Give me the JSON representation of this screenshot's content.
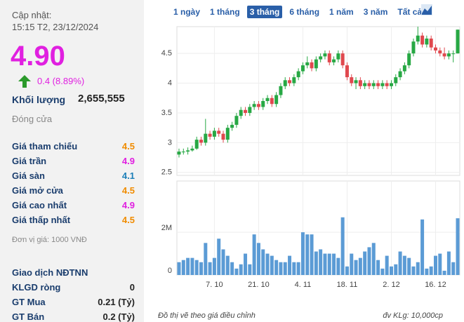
{
  "info": {
    "updated_label": "Cập nhật:",
    "updated_time": "15:15 T2, 23/12/2024",
    "price": "4.90",
    "change": "0.4 (8.89%)",
    "volume_label": "Khối lượng",
    "volume": "2,655,555",
    "status": "Đóng cửa",
    "rows": [
      [
        "Giá tham chiếu",
        "4.5"
      ],
      [
        "Giá trần",
        "4.9"
      ],
      [
        "Giá sàn",
        "4.1"
      ],
      [
        "Giá mở cửa",
        "4.5"
      ],
      [
        "Giá cao nhất",
        "4.9"
      ],
      [
        "Giá thấp nhất",
        "4.5"
      ]
    ],
    "unit": "Đơn vị giá: 1000 VNĐ",
    "foreign_title": "Giao dịch NĐTNN",
    "foreign_rows": [
      [
        "KLGD ròng",
        "0"
      ],
      [
        "GT Mua",
        "0.21 (Tỷ)"
      ],
      [
        "GT Bán",
        "0.2 (Tỷ)"
      ]
    ]
  },
  "range_buttons": [
    "1 ngày",
    "1 tháng",
    "3 tháng",
    "6 tháng",
    "1 năm",
    "3 năm",
    "Tất cả"
  ],
  "chart_data": {
    "type": "candlestick",
    "categories": [
      null,
      null,
      null,
      null,
      null,
      null,
      null,
      null,
      "7. 10",
      null,
      null,
      null,
      null,
      null,
      null,
      null,
      null,
      null,
      "21. 10",
      null,
      null,
      null,
      null,
      null,
      null,
      null,
      null,
      null,
      "4. 11",
      null,
      null,
      null,
      null,
      null,
      null,
      null,
      null,
      null,
      "18. 11",
      null,
      null,
      null,
      null,
      null,
      null,
      null,
      null,
      null,
      "2. 12",
      null,
      null,
      null,
      null,
      null,
      null,
      null,
      null,
      null,
      "16. 12",
      null,
      null,
      null,
      null,
      null
    ],
    "open": [
      2.8,
      2.85,
      2.85,
      2.87,
      2.9,
      3.05,
      3.0,
      3.15,
      3.1,
      3.2,
      3.15,
      3.05,
      3.25,
      3.3,
      3.45,
      3.55,
      3.5,
      3.6,
      3.65,
      3.6,
      3.7,
      3.75,
      3.65,
      3.8,
      3.95,
      4.05,
      4.0,
      4.1,
      4.2,
      4.3,
      4.35,
      4.25,
      4.4,
      4.45,
      4.5,
      4.35,
      4.4,
      4.5,
      4.3,
      4.1,
      4.0,
      4.05,
      3.95,
      4.0,
      3.95,
      4.0,
      3.95,
      4.0,
      3.95,
      4.0,
      4.1,
      4.2,
      4.3,
      4.5,
      4.7,
      4.8,
      4.65,
      4.75,
      4.6,
      4.55,
      4.5,
      4.45,
      4.5,
      4.5
    ],
    "high": [
      2.9,
      2.9,
      2.92,
      2.95,
      3.1,
      3.1,
      3.4,
      3.2,
      3.25,
      3.25,
      3.2,
      3.3,
      3.35,
      3.5,
      3.6,
      3.6,
      3.65,
      3.7,
      3.7,
      3.75,
      3.8,
      3.8,
      3.85,
      4.0,
      4.1,
      4.1,
      4.15,
      4.25,
      4.35,
      4.45,
      4.4,
      4.45,
      4.5,
      4.55,
      4.55,
      4.45,
      4.55,
      4.55,
      4.35,
      4.15,
      4.1,
      4.1,
      4.05,
      4.05,
      4.05,
      4.05,
      4.05,
      4.05,
      4.05,
      4.15,
      4.25,
      4.35,
      4.55,
      4.75,
      4.95,
      4.85,
      4.8,
      4.8,
      4.65,
      4.6,
      4.6,
      4.55,
      4.55,
      4.9
    ],
    "low": [
      2.75,
      2.8,
      2.8,
      2.85,
      2.88,
      2.95,
      2.95,
      3.05,
      3.05,
      3.1,
      3.0,
      3.0,
      3.2,
      3.25,
      3.4,
      3.45,
      3.45,
      3.55,
      3.55,
      3.55,
      3.65,
      3.6,
      3.6,
      3.75,
      3.9,
      3.95,
      3.95,
      4.05,
      4.15,
      4.25,
      4.2,
      4.2,
      4.35,
      4.4,
      4.3,
      4.3,
      4.35,
      4.25,
      4.05,
      3.95,
      3.9,
      3.9,
      3.9,
      3.9,
      3.9,
      3.9,
      3.9,
      3.9,
      3.9,
      3.95,
      4.05,
      4.15,
      4.25,
      4.45,
      4.65,
      4.6,
      4.6,
      4.55,
      4.5,
      4.45,
      4.4,
      4.4,
      4.35,
      4.5
    ],
    "close": [
      2.85,
      2.85,
      2.87,
      2.9,
      3.05,
      3.0,
      3.15,
      3.1,
      3.2,
      3.15,
      3.05,
      3.25,
      3.3,
      3.45,
      3.55,
      3.5,
      3.6,
      3.65,
      3.6,
      3.7,
      3.75,
      3.65,
      3.8,
      3.95,
      4.05,
      4.0,
      4.1,
      4.2,
      4.3,
      4.35,
      4.25,
      4.4,
      4.45,
      4.5,
      4.35,
      4.4,
      4.5,
      4.3,
      4.1,
      4.0,
      4.05,
      3.95,
      4.0,
      3.95,
      4.0,
      3.95,
      4.0,
      3.95,
      4.0,
      4.1,
      4.2,
      4.3,
      4.5,
      4.7,
      4.8,
      4.65,
      4.75,
      4.6,
      4.55,
      4.5,
      4.45,
      4.5,
      4.5,
      4.9
    ],
    "volume": [
      600000,
      700000,
      800000,
      800000,
      700000,
      600000,
      1500000,
      600000,
      800000,
      1700000,
      1200000,
      900000,
      600000,
      300000,
      500000,
      1000000,
      500000,
      1900000,
      1500000,
      1200000,
      1000000,
      900000,
      700000,
      600000,
      600000,
      900000,
      600000,
      600000,
      2000000,
      1900000,
      1900000,
      1100000,
      1200000,
      1000000,
      1000000,
      1000000,
      800000,
      2700000,
      400000,
      1000000,
      700000,
      800000,
      1100000,
      1300000,
      1500000,
      700000,
      300000,
      900000,
      400000,
      500000,
      1100000,
      900000,
      800000,
      400000,
      600000,
      2600000,
      300000,
      400000,
      900000,
      1000000,
      200000,
      1100000,
      600000,
      2655555
    ],
    "up_color": "#27a844",
    "down_color": "#e0484e",
    "volume_color": "#5b9bd5",
    "ylim": [
      2.45,
      4.95
    ],
    "yticks": [
      2.5,
      3,
      3.5,
      4,
      4.5
    ],
    "y2lim": [
      0,
      4400000
    ],
    "y2ticks": [
      0,
      {
        "value": 2000000,
        "label": "2M"
      }
    ],
    "grid": true,
    "footnote": "Đồ thị vẽ theo giá điều chỉnh",
    "volume_unit": "đv KLg: 10,000cp"
  }
}
